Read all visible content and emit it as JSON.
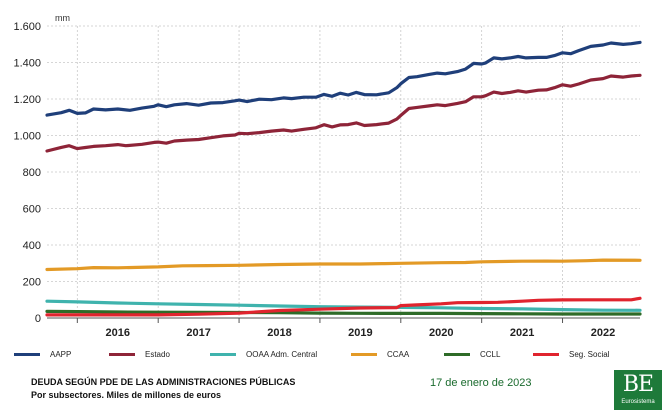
{
  "chart_data": {
    "type": "line",
    "unit_label": "mm",
    "x_start": 2015.625,
    "x_end": 2022.958,
    "year_labels": [
      "2016",
      "2017",
      "2018",
      "2019",
      "2020",
      "2021",
      "2022"
    ],
    "ylim": [
      0,
      1600
    ],
    "yticks": [
      {
        "value": 0,
        "label": "0"
      },
      {
        "value": 200,
        "label": "200"
      },
      {
        "value": 400,
        "label": "400"
      },
      {
        "value": 600,
        "label": "600"
      },
      {
        "value": 800,
        "label": "800"
      },
      {
        "value": 1000,
        "label": "1.000"
      },
      {
        "value": 1200,
        "label": "1.200"
      },
      {
        "value": 1400,
        "label": "1.400"
      },
      {
        "value": 1600,
        "label": "1.600"
      }
    ],
    "series": [
      {
        "name": "AAPP",
        "color": "#1f3f7a",
        "points": [
          [
            2015.625,
            1112
          ],
          [
            2015.8,
            1125
          ],
          [
            2015.9,
            1138
          ],
          [
            2016.0,
            1121
          ],
          [
            2016.1,
            1124
          ],
          [
            2016.2,
            1145
          ],
          [
            2016.35,
            1140
          ],
          [
            2016.5,
            1145
          ],
          [
            2016.65,
            1138
          ],
          [
            2016.8,
            1150
          ],
          [
            2016.95,
            1160
          ],
          [
            2017.0,
            1168
          ],
          [
            2017.1,
            1158
          ],
          [
            2017.2,
            1168
          ],
          [
            2017.35,
            1175
          ],
          [
            2017.5,
            1166
          ],
          [
            2017.65,
            1178
          ],
          [
            2017.8,
            1180
          ],
          [
            2017.95,
            1190
          ],
          [
            2018.0,
            1194
          ],
          [
            2018.1,
            1186
          ],
          [
            2018.25,
            1199
          ],
          [
            2018.4,
            1196
          ],
          [
            2018.55,
            1206
          ],
          [
            2018.65,
            1202
          ],
          [
            2018.8,
            1210
          ],
          [
            2018.95,
            1210
          ],
          [
            2019.05,
            1225
          ],
          [
            2019.15,
            1215
          ],
          [
            2019.25,
            1232
          ],
          [
            2019.35,
            1222
          ],
          [
            2019.45,
            1236
          ],
          [
            2019.55,
            1224
          ],
          [
            2019.7,
            1223
          ],
          [
            2019.85,
            1234
          ],
          [
            2019.95,
            1262
          ],
          [
            2020.0,
            1284
          ],
          [
            2020.1,
            1318
          ],
          [
            2020.2,
            1322
          ],
          [
            2020.35,
            1335
          ],
          [
            2020.45,
            1342
          ],
          [
            2020.55,
            1338
          ],
          [
            2020.7,
            1350
          ],
          [
            2020.8,
            1364
          ],
          [
            2020.9,
            1395
          ],
          [
            2021.0,
            1392
          ],
          [
            2021.05,
            1398
          ],
          [
            2021.15,
            1425
          ],
          [
            2021.25,
            1420
          ],
          [
            2021.35,
            1425
          ],
          [
            2021.45,
            1433
          ],
          [
            2021.55,
            1425
          ],
          [
            2021.7,
            1428
          ],
          [
            2021.8,
            1428
          ],
          [
            2021.9,
            1438
          ],
          [
            2022.0,
            1453
          ],
          [
            2022.1,
            1448
          ],
          [
            2022.2,
            1465
          ],
          [
            2022.35,
            1488
          ],
          [
            2022.5,
            1496
          ],
          [
            2022.6,
            1507
          ],
          [
            2022.75,
            1499
          ],
          [
            2022.85,
            1503
          ],
          [
            2022.958,
            1510
          ]
        ]
      },
      {
        "name": "Estado",
        "color": "#8e2438",
        "points": [
          [
            2015.625,
            915
          ],
          [
            2015.8,
            935
          ],
          [
            2015.9,
            944
          ],
          [
            2016.0,
            928
          ],
          [
            2016.1,
            934
          ],
          [
            2016.2,
            940
          ],
          [
            2016.35,
            944
          ],
          [
            2016.5,
            950
          ],
          [
            2016.6,
            944
          ],
          [
            2016.8,
            952
          ],
          [
            2016.95,
            962
          ],
          [
            2017.0,
            964
          ],
          [
            2017.1,
            958
          ],
          [
            2017.2,
            970
          ],
          [
            2017.35,
            975
          ],
          [
            2017.5,
            978
          ],
          [
            2017.65,
            988
          ],
          [
            2017.8,
            998
          ],
          [
            2017.95,
            1003
          ],
          [
            2018.0,
            1012
          ],
          [
            2018.1,
            1010
          ],
          [
            2018.25,
            1016
          ],
          [
            2018.4,
            1024
          ],
          [
            2018.55,
            1030
          ],
          [
            2018.65,
            1024
          ],
          [
            2018.8,
            1034
          ],
          [
            2018.95,
            1042
          ],
          [
            2019.05,
            1059
          ],
          [
            2019.15,
            1047
          ],
          [
            2019.25,
            1058
          ],
          [
            2019.35,
            1060
          ],
          [
            2019.45,
            1069
          ],
          [
            2019.55,
            1055
          ],
          [
            2019.7,
            1060
          ],
          [
            2019.85,
            1068
          ],
          [
            2019.95,
            1090
          ],
          [
            2020.0,
            1110
          ],
          [
            2020.1,
            1148
          ],
          [
            2020.2,
            1154
          ],
          [
            2020.35,
            1162
          ],
          [
            2020.45,
            1168
          ],
          [
            2020.55,
            1164
          ],
          [
            2020.7,
            1176
          ],
          [
            2020.8,
            1185
          ],
          [
            2020.9,
            1212
          ],
          [
            2021.0,
            1212
          ],
          [
            2021.05,
            1218
          ],
          [
            2021.15,
            1238
          ],
          [
            2021.25,
            1230
          ],
          [
            2021.35,
            1236
          ],
          [
            2021.45,
            1245
          ],
          [
            2021.55,
            1238
          ],
          [
            2021.7,
            1248
          ],
          [
            2021.8,
            1250
          ],
          [
            2021.9,
            1262
          ],
          [
            2022.0,
            1278
          ],
          [
            2022.1,
            1270
          ],
          [
            2022.2,
            1282
          ],
          [
            2022.35,
            1304
          ],
          [
            2022.5,
            1312
          ],
          [
            2022.6,
            1326
          ],
          [
            2022.75,
            1320
          ],
          [
            2022.85,
            1326
          ],
          [
            2022.958,
            1330
          ]
        ]
      },
      {
        "name": "OOAA Adm. Central",
        "color": "#3fb3ad",
        "points": [
          [
            2015.625,
            92
          ],
          [
            2016.0,
            88
          ],
          [
            2016.5,
            82
          ],
          [
            2017.0,
            78
          ],
          [
            2017.5,
            74
          ],
          [
            2018.0,
            70
          ],
          [
            2018.5,
            66
          ],
          [
            2019.0,
            62
          ],
          [
            2019.5,
            60
          ],
          [
            2020.0,
            58
          ],
          [
            2020.5,
            56
          ],
          [
            2021.0,
            52
          ],
          [
            2021.5,
            50
          ],
          [
            2022.0,
            46
          ],
          [
            2022.5,
            43
          ],
          [
            2022.958,
            42
          ]
        ]
      },
      {
        "name": "CCAA",
        "color": "#e39a26",
        "points": [
          [
            2015.625,
            266
          ],
          [
            2016.0,
            270
          ],
          [
            2016.2,
            276
          ],
          [
            2016.5,
            275
          ],
          [
            2017.0,
            280
          ],
          [
            2017.3,
            286
          ],
          [
            2017.6,
            287
          ],
          [
            2018.0,
            289
          ],
          [
            2018.5,
            293
          ],
          [
            2019.0,
            296
          ],
          [
            2019.5,
            296
          ],
          [
            2019.8,
            298
          ],
          [
            2020.0,
            300
          ],
          [
            2020.5,
            303
          ],
          [
            2020.8,
            304
          ],
          [
            2021.0,
            308
          ],
          [
            2021.5,
            311
          ],
          [
            2021.8,
            312
          ],
          [
            2022.0,
            311
          ],
          [
            2022.3,
            314
          ],
          [
            2022.5,
            317
          ],
          [
            2022.958,
            316
          ]
        ]
      },
      {
        "name": "CCLL",
        "color": "#2e6b28",
        "points": [
          [
            2015.625,
            36
          ],
          [
            2016.0,
            35
          ],
          [
            2016.5,
            33
          ],
          [
            2017.0,
            32
          ],
          [
            2017.5,
            31
          ],
          [
            2018.0,
            30
          ],
          [
            2018.5,
            29
          ],
          [
            2019.0,
            27
          ],
          [
            2019.5,
            26
          ],
          [
            2020.0,
            25
          ],
          [
            2020.5,
            25
          ],
          [
            2021.0,
            24
          ],
          [
            2021.5,
            23
          ],
          [
            2022.0,
            22
          ],
          [
            2022.5,
            22
          ],
          [
            2022.958,
            22
          ]
        ]
      },
      {
        "name": "Seg. Social",
        "color": "#e0242e",
        "points": [
          [
            2015.625,
            17
          ],
          [
            2016.0,
            17
          ],
          [
            2016.5,
            17
          ],
          [
            2017.0,
            17
          ],
          [
            2017.5,
            21
          ],
          [
            2018.0,
            27
          ],
          [
            2018.5,
            41
          ],
          [
            2019.0,
            48
          ],
          [
            2019.5,
            55
          ],
          [
            2019.95,
            57
          ],
          [
            2020.0,
            68
          ],
          [
            2020.2,
            72
          ],
          [
            2020.5,
            78
          ],
          [
            2020.7,
            84
          ],
          [
            2021.0,
            85
          ],
          [
            2021.2,
            86
          ],
          [
            2021.5,
            92
          ],
          [
            2021.7,
            97
          ],
          [
            2022.0,
            99
          ],
          [
            2022.3,
            100
          ],
          [
            2022.6,
            100
          ],
          [
            2022.85,
            100
          ],
          [
            2022.958,
            108
          ]
        ]
      }
    ]
  },
  "legend": [
    {
      "label": "AAPP",
      "color": "#1f3f7a"
    },
    {
      "label": "Estado",
      "color": "#8e2438"
    },
    {
      "label": "OOAA Adm. Central",
      "color": "#3fb3ad"
    },
    {
      "label": "CCAA",
      "color": "#e39a26"
    },
    {
      "label": "CCLL",
      "color": "#2e6b28"
    },
    {
      "label": "Seg. Social",
      "color": "#e0242e"
    }
  ],
  "footer": {
    "title": "DEUDA SEGÚN PDE DE LAS ADMINISTRACIONES PÚBLICAS",
    "subtitle": "Por subsectores. Miles de millones de euros",
    "date": "17 de enero de 2023"
  },
  "logo": {
    "mark": "BE",
    "text": "Eurosistema",
    "color": "#1e7a3a"
  }
}
